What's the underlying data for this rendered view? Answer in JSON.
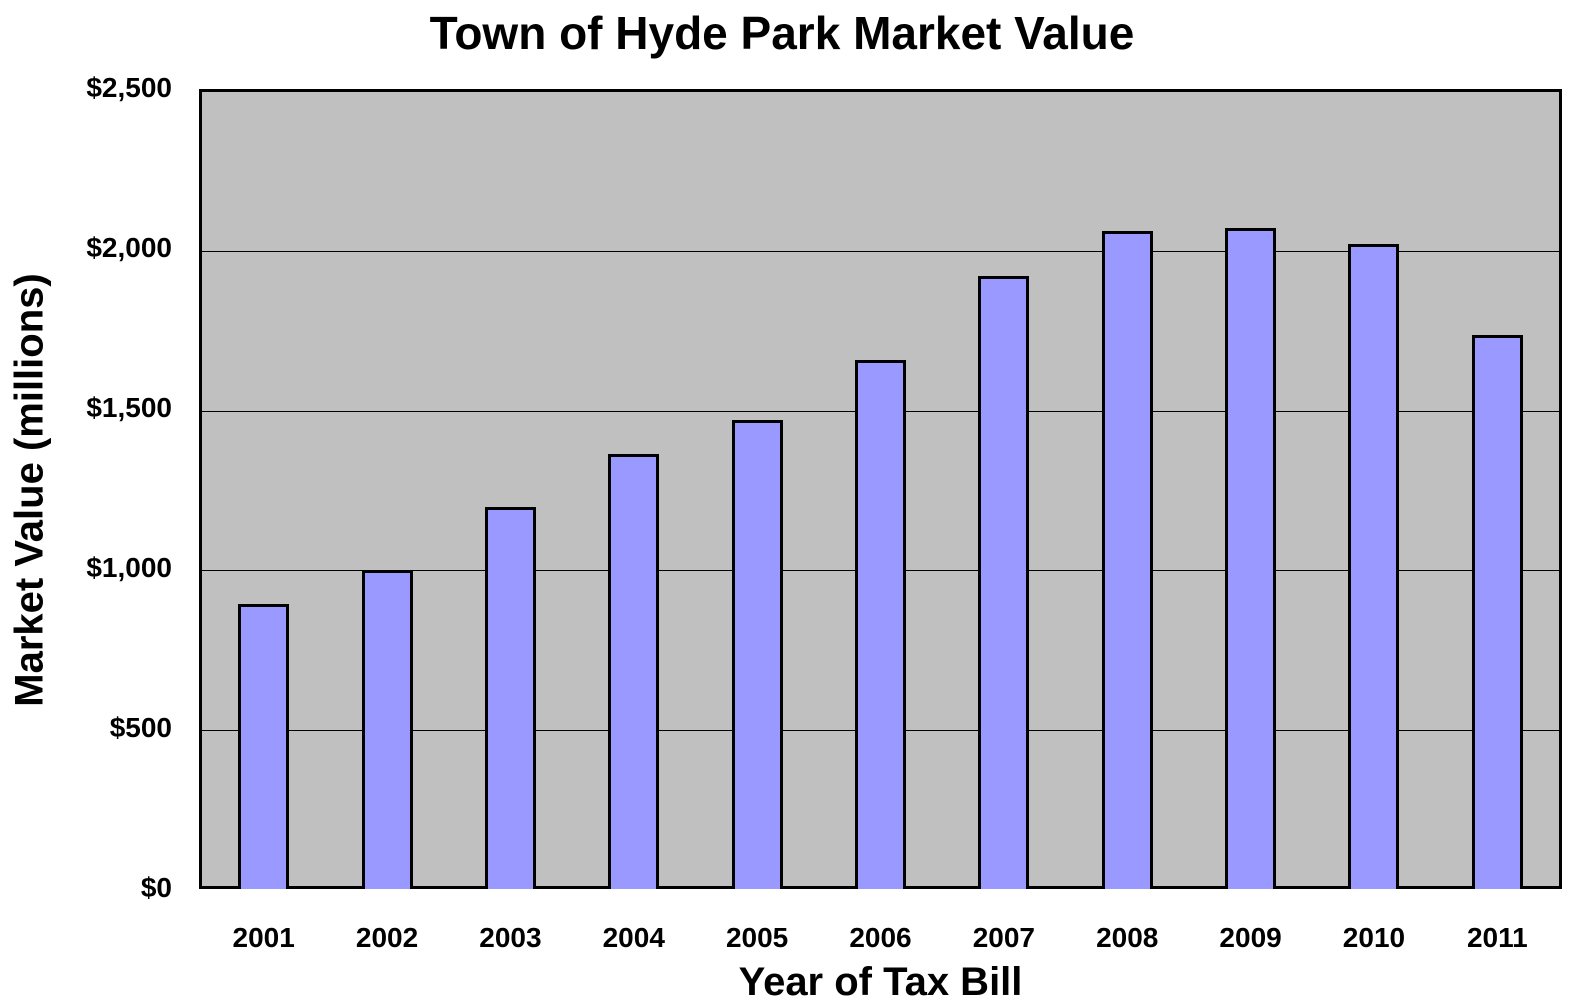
{
  "chart_data": {
    "type": "bar",
    "title": "Town of Hyde Park Market Value",
    "xlabel": "Year of Tax Bill",
    "ylabel": "Market Value (millions)",
    "categories": [
      "2001",
      "2002",
      "2003",
      "2004",
      "2005",
      "2006",
      "2007",
      "2008",
      "2009",
      "2010",
      "2011"
    ],
    "values": [
      895,
      1001,
      1198,
      1364,
      1471,
      1658,
      1924,
      2065,
      2074,
      2024,
      1737
    ],
    "ylim": [
      0,
      2500
    ],
    "yticks": [
      0,
      500,
      1000,
      1500,
      2000,
      2500
    ],
    "ytick_labels": [
      "$0",
      "$500",
      "$1,000",
      "$1,500",
      "$2,000",
      "$2,500"
    ],
    "grid": true,
    "legend": null,
    "colors": {
      "bar_fill": "#9999ff",
      "bar_edge": "#000000",
      "plot_background": "#c0c0c0",
      "page_background": "#ffffff"
    }
  }
}
